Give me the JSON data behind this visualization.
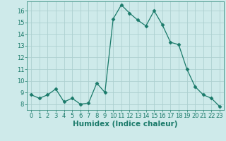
{
  "x": [
    0,
    1,
    2,
    3,
    4,
    5,
    6,
    7,
    8,
    9,
    10,
    11,
    12,
    13,
    14,
    15,
    16,
    17,
    18,
    19,
    20,
    21,
    22,
    23
  ],
  "y": [
    8.8,
    8.5,
    8.8,
    9.3,
    8.2,
    8.5,
    8.0,
    8.1,
    9.8,
    9.0,
    15.3,
    16.5,
    15.8,
    15.2,
    14.7,
    16.0,
    14.8,
    13.3,
    13.1,
    11.0,
    9.5,
    8.8,
    8.5,
    7.8
  ],
  "line_color": "#1a7a6a",
  "marker": "D",
  "marker_size": 2.5,
  "bg_color": "#ceeaea",
  "grid_color": "#add0d0",
  "xlabel": "Humidex (Indice chaleur)",
  "ylim": [
    7.5,
    16.8
  ],
  "xlim": [
    -0.5,
    23.5
  ],
  "yticks": [
    8,
    9,
    10,
    11,
    12,
    13,
    14,
    15,
    16
  ],
  "xticks": [
    0,
    1,
    2,
    3,
    4,
    5,
    6,
    7,
    8,
    9,
    10,
    11,
    12,
    13,
    14,
    15,
    16,
    17,
    18,
    19,
    20,
    21,
    22,
    23
  ],
  "tick_fontsize": 6,
  "xlabel_fontsize": 7.5
}
